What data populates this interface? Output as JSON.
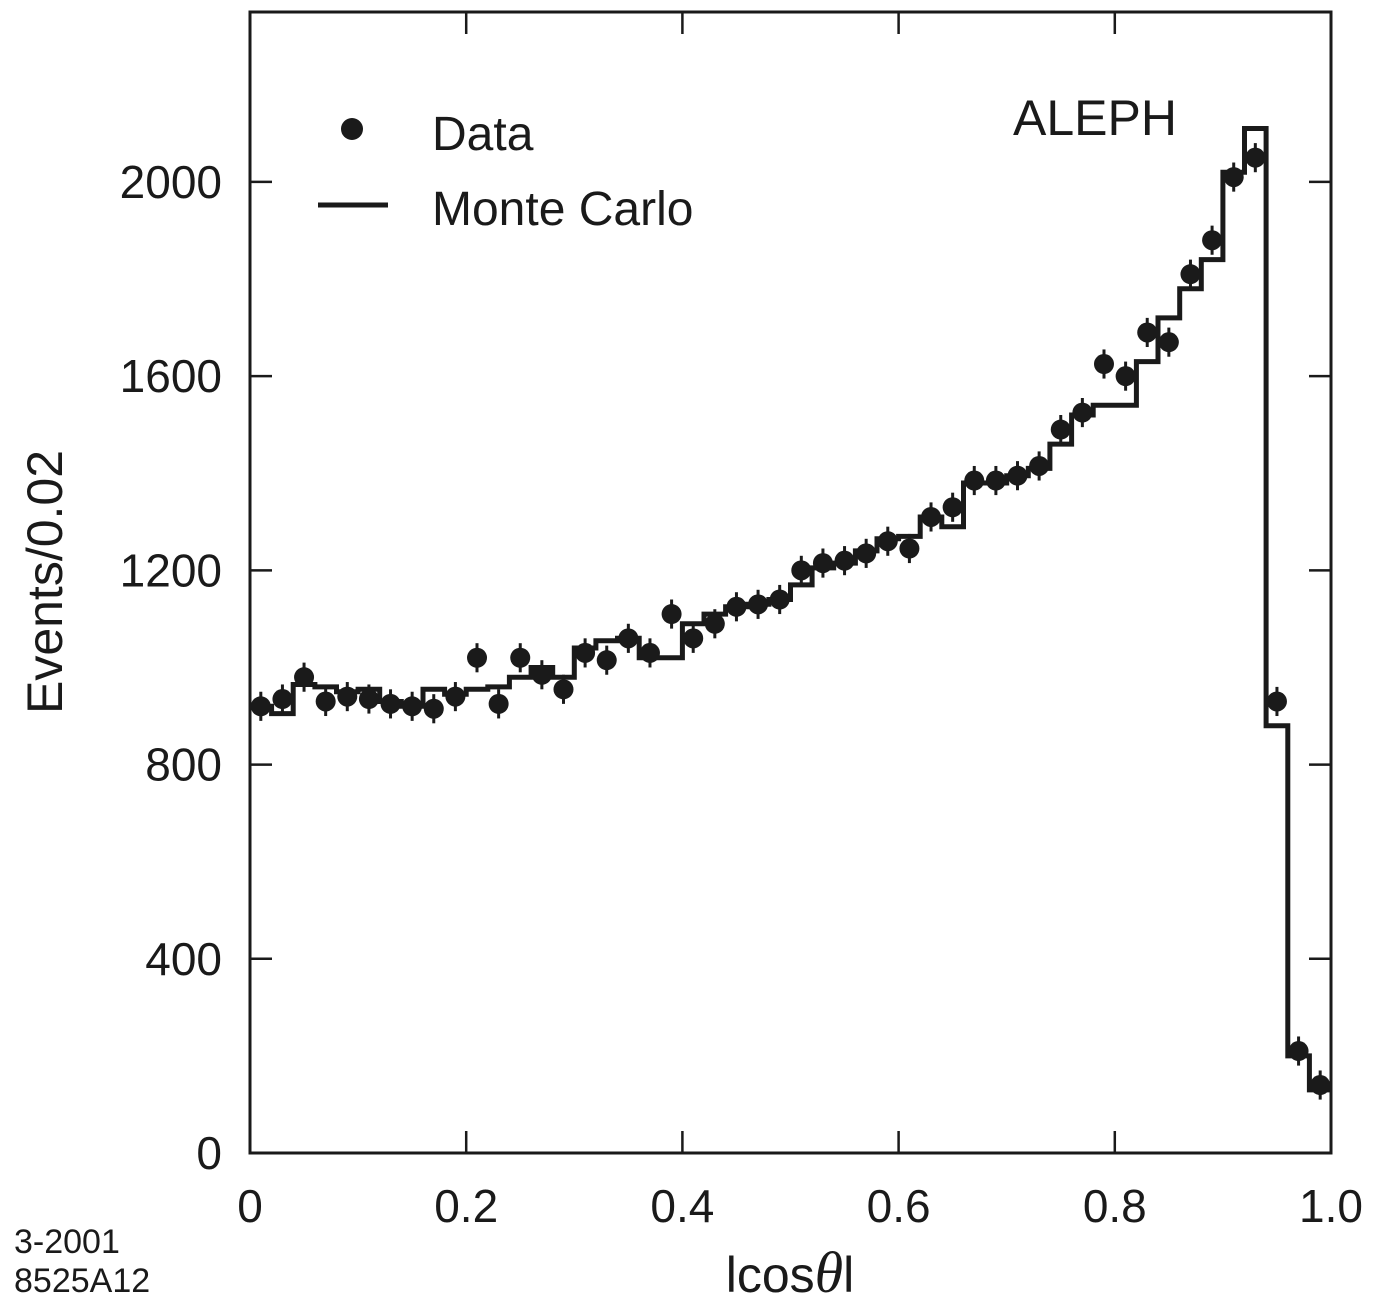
{
  "chart_data": {
    "type": "scatter",
    "experiment_label": "ALEPH",
    "xlabel": {
      "prefix": "lcos",
      "symbol": "θ",
      "suffix": "l"
    },
    "ylabel": "Events/0.02",
    "xlim": [
      0,
      1.0
    ],
    "ylim": [
      0,
      2350
    ],
    "x_ticks": [
      0,
      0.2,
      0.4,
      0.6,
      0.8,
      1.0
    ],
    "x_tick_labels": [
      "0",
      "0.2",
      "0.4",
      "0.6",
      "0.8",
      "1.0"
    ],
    "y_ticks": [
      0,
      400,
      800,
      1200,
      1600,
      2000
    ],
    "y_tick_labels": [
      "0",
      "400",
      "800",
      "1200",
      "1600",
      "2000"
    ],
    "grid": false,
    "legend_position": "top-left",
    "legend": [
      {
        "label": "Data",
        "marker": "point-with-error"
      },
      {
        "label": "Monte Carlo",
        "marker": "line"
      }
    ],
    "footnote": [
      "3-2001",
      "8525A12"
    ],
    "series": [
      {
        "name": "Data",
        "kind": "points",
        "x": [
          0.01,
          0.03,
          0.05,
          0.07,
          0.09,
          0.11,
          0.13,
          0.15,
          0.17,
          0.19,
          0.21,
          0.23,
          0.25,
          0.27,
          0.29,
          0.31,
          0.33,
          0.35,
          0.37,
          0.39,
          0.41,
          0.43,
          0.45,
          0.47,
          0.49,
          0.51,
          0.53,
          0.55,
          0.57,
          0.59,
          0.61,
          0.63,
          0.65,
          0.67,
          0.69,
          0.71,
          0.73,
          0.75,
          0.77,
          0.79,
          0.81,
          0.83,
          0.85,
          0.87,
          0.89,
          0.91,
          0.93,
          0.95,
          0.97,
          0.99
        ],
        "y": [
          920,
          935,
          980,
          930,
          940,
          935,
          925,
          920,
          915,
          940,
          1020,
          925,
          1020,
          985,
          955,
          1030,
          1015,
          1060,
          1030,
          1110,
          1060,
          1090,
          1125,
          1130,
          1140,
          1200,
          1215,
          1220,
          1235,
          1260,
          1245,
          1310,
          1330,
          1385,
          1385,
          1395,
          1415,
          1490,
          1525,
          1625,
          1600,
          1690,
          1670,
          1810,
          1880,
          2010,
          2050,
          930,
          210,
          140
        ],
        "error": 30
      },
      {
        "name": "Monte Carlo",
        "kind": "step-histogram",
        "bin_edges": [
          0,
          0.02,
          0.04,
          0.06,
          0.08,
          0.1,
          0.12,
          0.14,
          0.16,
          0.18,
          0.2,
          0.22,
          0.24,
          0.26,
          0.28,
          0.3,
          0.32,
          0.34,
          0.36,
          0.38,
          0.4,
          0.42,
          0.44,
          0.46,
          0.48,
          0.5,
          0.52,
          0.54,
          0.56,
          0.58,
          0.6,
          0.62,
          0.64,
          0.66,
          0.68,
          0.7,
          0.72,
          0.74,
          0.76,
          0.78,
          0.8,
          0.82,
          0.84,
          0.86,
          0.88,
          0.9,
          0.92,
          0.94,
          0.96,
          0.98,
          1.0
        ],
        "values": [
          920,
          905,
          965,
          960,
          950,
          955,
          930,
          920,
          955,
          945,
          955,
          960,
          980,
          1000,
          980,
          1040,
          1055,
          1060,
          1020,
          1020,
          1090,
          1110,
          1125,
          1130,
          1140,
          1170,
          1205,
          1215,
          1240,
          1265,
          1270,
          1310,
          1290,
          1380,
          1380,
          1395,
          1410,
          1460,
          1520,
          1540,
          1540,
          1630,
          1720,
          1780,
          1840,
          2020,
          2110,
          880,
          200,
          130
        ]
      }
    ]
  }
}
